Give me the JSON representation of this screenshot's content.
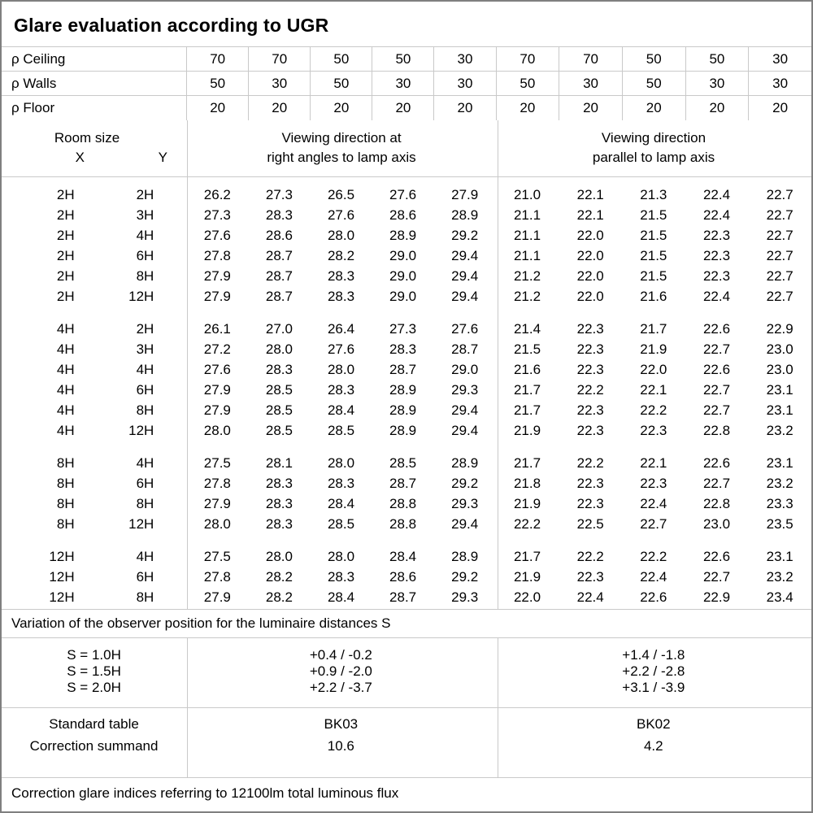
{
  "title": "Glare evaluation according to UGR",
  "reflectance": {
    "rows": [
      {
        "label": "ρ Ceiling",
        "values": [
          "70",
          "70",
          "50",
          "50",
          "30",
          "70",
          "70",
          "50",
          "50",
          "30"
        ]
      },
      {
        "label": "ρ Walls",
        "values": [
          "50",
          "30",
          "50",
          "30",
          "30",
          "50",
          "30",
          "50",
          "30",
          "30"
        ]
      },
      {
        "label": "ρ Floor",
        "values": [
          "20",
          "20",
          "20",
          "20",
          "20",
          "20",
          "20",
          "20",
          "20",
          "20"
        ]
      }
    ]
  },
  "header": {
    "room_size": "Room size",
    "x": "X",
    "y": "Y",
    "group1_line1": "Viewing direction at",
    "group1_line2": "right angles to lamp axis",
    "group2_line1": "Viewing direction",
    "group2_line2": "parallel to lamp axis"
  },
  "blocks": [
    {
      "rows": [
        {
          "x": "2H",
          "y": "2H",
          "g1": [
            "26.2",
            "27.3",
            "26.5",
            "27.6",
            "27.9"
          ],
          "g2": [
            "21.0",
            "22.1",
            "21.3",
            "22.4",
            "22.7"
          ]
        },
        {
          "x": "2H",
          "y": "3H",
          "g1": [
            "27.3",
            "28.3",
            "27.6",
            "28.6",
            "28.9"
          ],
          "g2": [
            "21.1",
            "22.1",
            "21.5",
            "22.4",
            "22.7"
          ]
        },
        {
          "x": "2H",
          "y": "4H",
          "g1": [
            "27.6",
            "28.6",
            "28.0",
            "28.9",
            "29.2"
          ],
          "g2": [
            "21.1",
            "22.0",
            "21.5",
            "22.3",
            "22.7"
          ]
        },
        {
          "x": "2H",
          "y": "6H",
          "g1": [
            "27.8",
            "28.7",
            "28.2",
            "29.0",
            "29.4"
          ],
          "g2": [
            "21.1",
            "22.0",
            "21.5",
            "22.3",
            "22.7"
          ]
        },
        {
          "x": "2H",
          "y": "8H",
          "g1": [
            "27.9",
            "28.7",
            "28.3",
            "29.0",
            "29.4"
          ],
          "g2": [
            "21.2",
            "22.0",
            "21.5",
            "22.3",
            "22.7"
          ]
        },
        {
          "x": "2H",
          "y": "12H",
          "g1": [
            "27.9",
            "28.7",
            "28.3",
            "29.0",
            "29.4"
          ],
          "g2": [
            "21.2",
            "22.0",
            "21.6",
            "22.4",
            "22.7"
          ]
        }
      ]
    },
    {
      "rows": [
        {
          "x": "4H",
          "y": "2H",
          "g1": [
            "26.1",
            "27.0",
            "26.4",
            "27.3",
            "27.6"
          ],
          "g2": [
            "21.4",
            "22.3",
            "21.7",
            "22.6",
            "22.9"
          ]
        },
        {
          "x": "4H",
          "y": "3H",
          "g1": [
            "27.2",
            "28.0",
            "27.6",
            "28.3",
            "28.7"
          ],
          "g2": [
            "21.5",
            "22.3",
            "21.9",
            "22.7",
            "23.0"
          ]
        },
        {
          "x": "4H",
          "y": "4H",
          "g1": [
            "27.6",
            "28.3",
            "28.0",
            "28.7",
            "29.0"
          ],
          "g2": [
            "21.6",
            "22.3",
            "22.0",
            "22.6",
            "23.0"
          ]
        },
        {
          "x": "4H",
          "y": "6H",
          "g1": [
            "27.9",
            "28.5",
            "28.3",
            "28.9",
            "29.3"
          ],
          "g2": [
            "21.7",
            "22.2",
            "22.1",
            "22.7",
            "23.1"
          ]
        },
        {
          "x": "4H",
          "y": "8H",
          "g1": [
            "27.9",
            "28.5",
            "28.4",
            "28.9",
            "29.4"
          ],
          "g2": [
            "21.7",
            "22.3",
            "22.2",
            "22.7",
            "23.1"
          ]
        },
        {
          "x": "4H",
          "y": "12H",
          "g1": [
            "28.0",
            "28.5",
            "28.5",
            "28.9",
            "29.4"
          ],
          "g2": [
            "21.9",
            "22.3",
            "22.3",
            "22.8",
            "23.2"
          ]
        }
      ]
    },
    {
      "rows": [
        {
          "x": "8H",
          "y": "4H",
          "g1": [
            "27.5",
            "28.1",
            "28.0",
            "28.5",
            "28.9"
          ],
          "g2": [
            "21.7",
            "22.2",
            "22.1",
            "22.6",
            "23.1"
          ]
        },
        {
          "x": "8H",
          "y": "6H",
          "g1": [
            "27.8",
            "28.3",
            "28.3",
            "28.7",
            "29.2"
          ],
          "g2": [
            "21.8",
            "22.3",
            "22.3",
            "22.7",
            "23.2"
          ]
        },
        {
          "x": "8H",
          "y": "8H",
          "g1": [
            "27.9",
            "28.3",
            "28.4",
            "28.8",
            "29.3"
          ],
          "g2": [
            "21.9",
            "22.3",
            "22.4",
            "22.8",
            "23.3"
          ]
        },
        {
          "x": "8H",
          "y": "12H",
          "g1": [
            "28.0",
            "28.3",
            "28.5",
            "28.8",
            "29.4"
          ],
          "g2": [
            "22.2",
            "22.5",
            "22.7",
            "23.0",
            "23.5"
          ]
        }
      ]
    },
    {
      "rows": [
        {
          "x": "12H",
          "y": "4H",
          "g1": [
            "27.5",
            "28.0",
            "28.0",
            "28.4",
            "28.9"
          ],
          "g2": [
            "21.7",
            "22.2",
            "22.2",
            "22.6",
            "23.1"
          ]
        },
        {
          "x": "12H",
          "y": "6H",
          "g1": [
            "27.8",
            "28.2",
            "28.3",
            "28.6",
            "29.2"
          ],
          "g2": [
            "21.9",
            "22.3",
            "22.4",
            "22.7",
            "23.2"
          ]
        },
        {
          "x": "12H",
          "y": "8H",
          "g1": [
            "27.9",
            "28.2",
            "28.4",
            "28.7",
            "29.3"
          ],
          "g2": [
            "22.0",
            "22.4",
            "22.6",
            "22.9",
            "23.4"
          ]
        }
      ]
    }
  ],
  "variation_note": "Variation of the observer position for the luminaire distances S",
  "variation": {
    "rows": [
      {
        "label": "S = 1.0H",
        "right_angles": "+0.4 / -0.2",
        "parallel": "+1.4 / -1.8"
      },
      {
        "label": "S = 1.5H",
        "right_angles": "+0.9 / -2.0",
        "parallel": "+2.2 / -2.8"
      },
      {
        "label": "S = 2.0H",
        "right_angles": "+2.2 / -3.7",
        "parallel": "+3.1 / -3.9"
      }
    ]
  },
  "standard": {
    "label_table": "Standard table",
    "label_summand": "Correction summand",
    "right_angles_table": "BK03",
    "right_angles_summand": "10.6",
    "parallel_table": "BK02",
    "parallel_summand": "4.2"
  },
  "footer_note": "Correction glare indices referring to 12100lm total luminous flux"
}
